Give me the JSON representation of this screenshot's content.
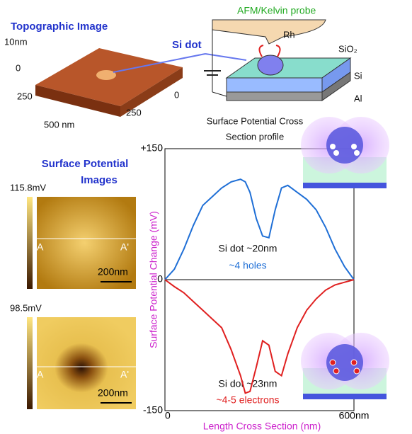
{
  "labels": {
    "topo_title": "Topographic Image",
    "topo_z": "10nm",
    "topo_z0": "0",
    "topo_y250": "250",
    "topo_x0": "0",
    "topo_x250": "250",
    "topo_x500": "500 nm",
    "si_dot": "Si dot",
    "probe": "AFM/Kelvin probe",
    "rh": "Rh",
    "sio2": "SiO₂",
    "si": "Si",
    "al": "Al",
    "sp_title": [
      "Surface Potential",
      "Images"
    ],
    "img1": {
      "max": "115.8mV",
      "a": "A",
      "a2": "A'",
      "scale": "200nm"
    },
    "img2": {
      "max": "98.5mV",
      "a": "A",
      "a2": "A'",
      "scale": "200nm"
    },
    "holes": {
      "dot": "Si dot ~20nm",
      "count": "~4 holes"
    },
    "electrons": {
      "dot": "Si dot ~23nm",
      "count": "~4-5 electrons"
    }
  },
  "chart_data": {
    "type": "line",
    "title": [
      "Surface Potential Cross",
      "Section profile"
    ],
    "x_label": "Length Cross Section (nm)",
    "y_label": "Surface Potential Change (mV)",
    "x": [
      0,
      30,
      60,
      90,
      120,
      150,
      180,
      210,
      240,
      255,
      270,
      290,
      310,
      330,
      350,
      370,
      390,
      420,
      450,
      480,
      510,
      540,
      570,
      600
    ],
    "series": [
      {
        "color": "#1f6fd6",
        "values": [
          0,
          12,
          35,
          62,
          85,
          95,
          105,
          112,
          115,
          112,
          100,
          70,
          50,
          48,
          80,
          105,
          108,
          100,
          92,
          80,
          60,
          35,
          15,
          0
        ]
      },
      {
        "color": "#e02020",
        "values": [
          0,
          -8,
          -15,
          -25,
          -35,
          -45,
          -55,
          -80,
          -110,
          -130,
          -128,
          -100,
          -70,
          -75,
          -105,
          -110,
          -85,
          -55,
          -35,
          -22,
          -12,
          -6,
          -3,
          0
        ]
      }
    ],
    "xlim": [
      0,
      600
    ],
    "xticks": [
      0,
      {
        "value": 600,
        "label": "600nm"
      }
    ],
    "ylim": [
      -150,
      150
    ],
    "yticks": [
      {
        "value": 150,
        "label": "+150"
      },
      0,
      -150
    ]
  }
}
